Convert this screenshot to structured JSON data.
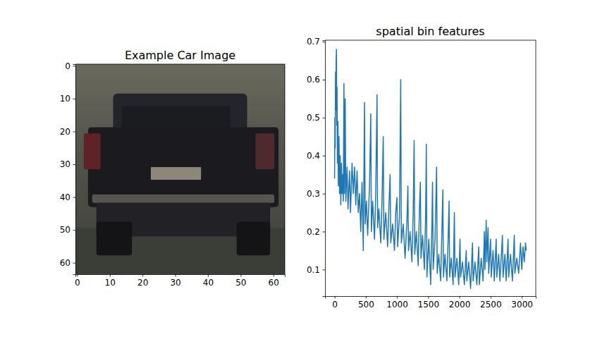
{
  "chart_data": [
    {
      "type": "image",
      "title": "Example Car Image",
      "xlim": [
        -0.5,
        63.5
      ],
      "ylim": [
        63.5,
        -0.5
      ],
      "xticks": [
        0,
        10,
        20,
        30,
        40,
        50,
        60
      ],
      "yticks": [
        0,
        10,
        20,
        30,
        40,
        50,
        60
      ]
    },
    {
      "type": "line",
      "title": "spatial bin features",
      "color": "#1f77b4",
      "xlim": [
        -153.55,
        3224.55
      ],
      "ylim": [
        0.03,
        0.704
      ],
      "xticks": [
        0,
        500,
        1000,
        1500,
        2000,
        2500,
        3000
      ],
      "yticks": [
        0.1,
        0.2,
        0.3,
        0.4,
        0.5,
        0.6,
        0.7
      ],
      "x": [
        0,
        5,
        10,
        15,
        20,
        25,
        30,
        35,
        40,
        45,
        55,
        60,
        70,
        80,
        90,
        100,
        110,
        120,
        130,
        140,
        150,
        158,
        170,
        180,
        200,
        215,
        240,
        255,
        280,
        300,
        320,
        340,
        360,
        380,
        400,
        420,
        440,
        460,
        480,
        490,
        510,
        530,
        560,
        580,
        590,
        610,
        640,
        660,
        680,
        690,
        710,
        740,
        760,
        780,
        790,
        820,
        850,
        870,
        890,
        900,
        930,
        960,
        980,
        1000,
        1010,
        1040,
        1060,
        1070,
        1100,
        1130,
        1160,
        1175,
        1185,
        1210,
        1240,
        1260,
        1275,
        1285,
        1310,
        1340,
        1360,
        1375,
        1385,
        1410,
        1440,
        1460,
        1470,
        1480,
        1510,
        1540,
        1560,
        1570,
        1580,
        1610,
        1635,
        1645,
        1670,
        1700,
        1720,
        1735,
        1745,
        1770,
        1800,
        1820,
        1835,
        1845,
        1870,
        1900,
        1920,
        1930,
        1960,
        1990,
        2010,
        2020,
        2050,
        2080,
        2110,
        2120,
        2150,
        2180,
        2210,
        2220,
        2250,
        2280,
        2310,
        2320,
        2350,
        2380,
        2400,
        2410,
        2430,
        2440,
        2460,
        2470,
        2500,
        2510,
        2540,
        2560,
        2590,
        2600,
        2630,
        2650,
        2690,
        2700,
        2730,
        2750,
        2780,
        2790,
        2820,
        2850,
        2880,
        2890,
        2920,
        2950,
        2980,
        3000,
        3020,
        3040,
        3060,
        3071
      ],
      "values": [
        0.34,
        0.5,
        0.42,
        0.62,
        0.52,
        0.65,
        0.68,
        0.48,
        0.58,
        0.38,
        0.49,
        0.32,
        0.45,
        0.3,
        0.4,
        0.27,
        0.38,
        0.3,
        0.35,
        0.28,
        0.59,
        0.3,
        0.55,
        0.28,
        0.37,
        0.26,
        0.36,
        0.25,
        0.38,
        0.3,
        0.37,
        0.27,
        0.36,
        0.25,
        0.3,
        0.2,
        0.33,
        0.15,
        0.54,
        0.22,
        0.28,
        0.19,
        0.32,
        0.51,
        0.2,
        0.28,
        0.18,
        0.3,
        0.56,
        0.21,
        0.26,
        0.17,
        0.28,
        0.45,
        0.18,
        0.25,
        0.16,
        0.26,
        0.35,
        0.17,
        0.22,
        0.15,
        0.25,
        0.29,
        0.16,
        0.24,
        0.6,
        0.17,
        0.22,
        0.13,
        0.23,
        0.32,
        0.15,
        0.2,
        0.12,
        0.25,
        0.44,
        0.14,
        0.2,
        0.11,
        0.26,
        0.33,
        0.13,
        0.19,
        0.1,
        0.25,
        0.43,
        0.08,
        0.18,
        0.06,
        0.22,
        0.33,
        0.1,
        0.18,
        0.37,
        0.09,
        0.14,
        0.07,
        0.2,
        0.31,
        0.08,
        0.14,
        0.07,
        0.18,
        0.28,
        0.08,
        0.13,
        0.06,
        0.25,
        0.08,
        0.13,
        0.06,
        0.18,
        0.08,
        0.12,
        0.06,
        0.15,
        0.07,
        0.12,
        0.05,
        0.17,
        0.07,
        0.12,
        0.06,
        0.16,
        0.06,
        0.13,
        0.07,
        0.2,
        0.1,
        0.23,
        0.12,
        0.21,
        0.09,
        0.18,
        0.08,
        0.15,
        0.07,
        0.18,
        0.08,
        0.14,
        0.07,
        0.19,
        0.08,
        0.14,
        0.07,
        0.18,
        0.08,
        0.14,
        0.07,
        0.19,
        0.09,
        0.13,
        0.09,
        0.17,
        0.1,
        0.16,
        0.12,
        0.17,
        0.15
      ]
    }
  ]
}
